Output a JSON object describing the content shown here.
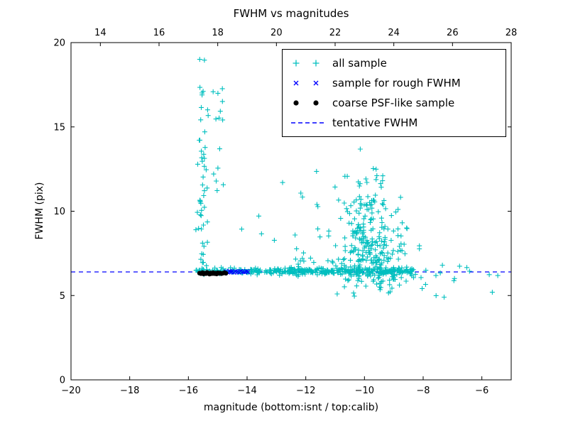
{
  "figure": {
    "title": "FWHM vs magnitudes",
    "xlabel": "magnitude (bottom:isnt / top:calib)",
    "ylabel": "FWHM (pix)"
  },
  "chart_data": {
    "type": "scatter",
    "title": "FWHM vs magnitudes",
    "xlabel": "magnitude (bottom:isnt / top:calib)",
    "ylabel": "FWHM (pix)",
    "background": "#ffffff",
    "frame_color": "#000000",
    "grid": false,
    "seed": 42,
    "x_axis_bottom": {
      "name": "isnt",
      "range": [
        -20,
        -5
      ],
      "ticks": [
        -20,
        -18,
        -16,
        -14,
        -12,
        -10,
        -8,
        -6
      ]
    },
    "x_axis_top": {
      "name": "calib",
      "range": [
        13,
        28
      ],
      "ticks": [
        14,
        16,
        18,
        20,
        22,
        24,
        26,
        28
      ]
    },
    "y_axis": {
      "range": [
        0,
        20
      ],
      "ticks": [
        0,
        5,
        10,
        15,
        20
      ]
    },
    "tentative_fwhm": 6.4,
    "legend": {
      "position": "upper right",
      "entries": [
        {
          "label": "all sample",
          "marker": "plus",
          "color": "#00bfbf"
        },
        {
          "label": "sample for rough FWHM",
          "marker": "x",
          "color": "#0000ff"
        },
        {
          "label": "coarse PSF-like sample",
          "marker": "dot",
          "color": "#000000"
        },
        {
          "label": "tentative FWHM",
          "marker": "dashed-line",
          "color": "#0000ff"
        }
      ]
    },
    "series": [
      {
        "name": "all sample",
        "marker": "plus",
        "color": "#00bfbf",
        "clusters": [
          {
            "count": 320,
            "x": {
              "dist": "uniform",
              "min": -15.75,
              "max": -8.3
            },
            "y": {
              "dist": "normal",
              "mean": 6.45,
              "sd": 0.09
            },
            "clampY": [
              6.15,
              6.8
            ]
          },
          {
            "count": 80,
            "x": {
              "dist": "uniform",
              "min": -13.2,
              "max": -8.4
            },
            "y": {
              "dist": "normal",
              "mean": 6.45,
              "sd": 0.13
            },
            "clampY": [
              6.0,
              6.95
            ]
          },
          {
            "count": 40,
            "x": {
              "dist": "normal",
              "mean": -15.55,
              "sd": 0.09
            },
            "y": {
              "dist": "uniform",
              "min": 6.6,
              "max": 14.8
            }
          },
          {
            "count": 10,
            "x": {
              "dist": "normal",
              "mean": -15.5,
              "sd": 0.12
            },
            "y": {
              "dist": "uniform",
              "min": 15.3,
              "max": 19.3
            }
          },
          {
            "count": 14,
            "x": {
              "dist": "normal",
              "mean": -14.95,
              "sd": 0.16
            },
            "y": {
              "dist": "uniform",
              "min": 10.5,
              "max": 17.3
            }
          },
          {
            "count": 10,
            "x": {
              "dist": "uniform",
              "min": -14.4,
              "max": -11.4
            },
            "y": {
              "dist": "uniform",
              "min": 8.0,
              "max": 13.6
            }
          },
          {
            "count": 16,
            "x": {
              "dist": "uniform",
              "min": -12.7,
              "max": -11.0
            },
            "y": {
              "dist": "halfnormal",
              "base": 6.6,
              "scale": 1.2,
              "sign": 1
            },
            "clampY": [
              6.6,
              10.5
            ]
          },
          {
            "count": 240,
            "x": {
              "dist": "normal",
              "mean": -9.85,
              "sd": 0.6
            },
            "clampX": [
              -11.7,
              -7.7
            ],
            "y": {
              "dist": "halfnormal",
              "base": 6.5,
              "scale": 2.6,
              "sign": 1
            },
            "clampY": [
              6.5,
              15.2
            ]
          },
          {
            "count": 60,
            "x": {
              "dist": "normal",
              "mean": -9.6,
              "sd": 0.8
            },
            "clampX": [
              -12.0,
              -7.5
            ],
            "y": {
              "dist": "halfnormal",
              "base": 6.3,
              "scale": 0.55,
              "sign": -1
            },
            "clampY": [
              4.8,
              6.3
            ]
          },
          {
            "count": 14,
            "x": {
              "dist": "uniform",
              "min": -8.1,
              "max": -5.4
            },
            "y": {
              "dist": "normal",
              "mean": 6.3,
              "sd": 0.9
            },
            "clampY": [
              4.85,
              8.2
            ]
          }
        ]
      },
      {
        "name": "sample for rough FWHM",
        "marker": "x",
        "color": "#0000ff",
        "points": [
          [
            -14.72,
            6.42
          ],
          [
            -14.65,
            6.38
          ],
          [
            -14.6,
            6.44
          ],
          [
            -14.57,
            6.41
          ],
          [
            -14.52,
            6.4
          ],
          [
            -14.45,
            6.37
          ],
          [
            -14.4,
            6.43
          ],
          [
            -14.33,
            6.4
          ],
          [
            -14.27,
            6.38
          ],
          [
            -14.22,
            6.44
          ],
          [
            -14.15,
            6.41
          ],
          [
            -14.08,
            6.39
          ],
          [
            -14.02,
            6.43
          ],
          [
            -13.97,
            6.4
          ]
        ]
      },
      {
        "name": "coarse PSF-like sample",
        "marker": "dot",
        "color": "#000000",
        "points": [
          [
            -15.62,
            6.33
          ],
          [
            -15.57,
            6.3
          ],
          [
            -15.52,
            6.36
          ],
          [
            -15.48,
            6.28
          ],
          [
            -15.44,
            6.33
          ],
          [
            -15.4,
            6.3
          ],
          [
            -15.36,
            6.37
          ],
          [
            -15.32,
            6.31
          ],
          [
            -15.28,
            6.27
          ],
          [
            -15.24,
            6.34
          ],
          [
            -15.2,
            6.3
          ],
          [
            -15.16,
            6.36
          ],
          [
            -15.12,
            6.3
          ],
          [
            -15.08,
            6.33
          ],
          [
            -15.04,
            6.28
          ],
          [
            -15.0,
            6.35
          ],
          [
            -14.96,
            6.31
          ],
          [
            -14.92,
            6.34
          ],
          [
            -14.87,
            6.3
          ],
          [
            -14.82,
            6.33
          ],
          [
            -14.77,
            6.36
          ],
          [
            -14.72,
            6.32
          ]
        ]
      },
      {
        "name": "tentative FWHM",
        "type": "hline",
        "y": 6.4,
        "color": "#0000ff",
        "style": "dashed"
      }
    ]
  }
}
